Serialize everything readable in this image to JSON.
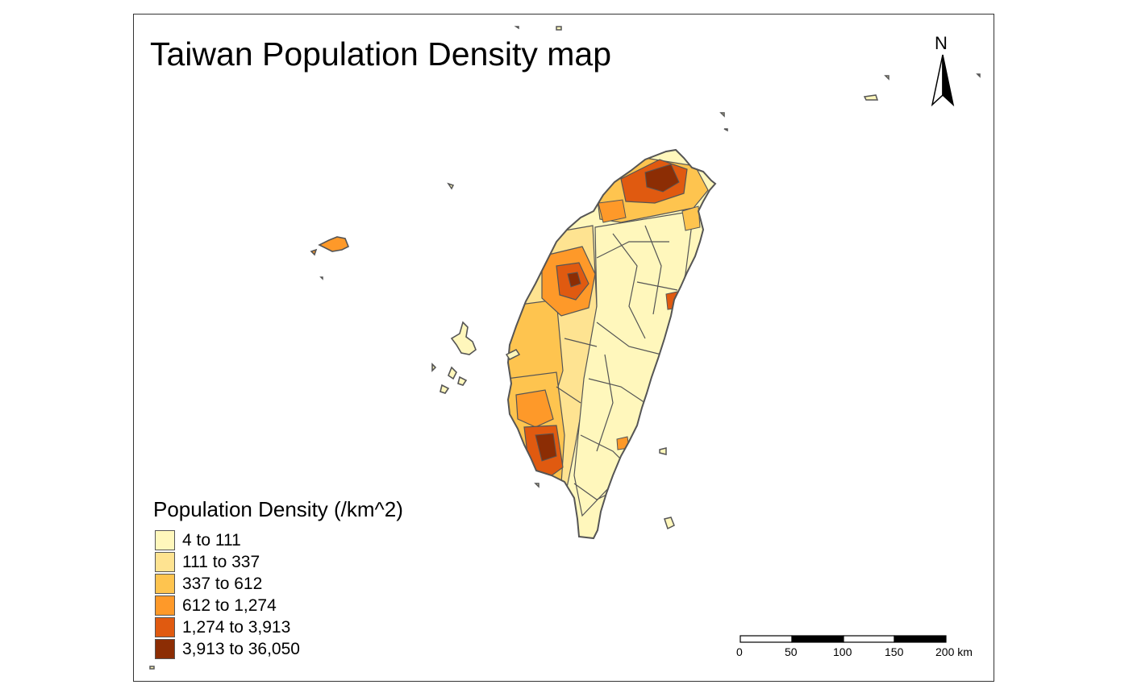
{
  "title": "Taiwan Population Density map",
  "legend": {
    "title": "Population Density (/km^2)",
    "items": [
      {
        "label": "4 to 111",
        "color": "#fff7bc"
      },
      {
        "label": "111 to 337",
        "color": "#fee391"
      },
      {
        "label": "337 to 612",
        "color": "#fec44f"
      },
      {
        "label": "612 to 1,274",
        "color": "#fe9929"
      },
      {
        "label": "1,274 to 3,913",
        "color": "#e05a10"
      },
      {
        "label": "3,913 to 36,050",
        "color": "#8c2d04"
      }
    ]
  },
  "scale_bar": {
    "labels": [
      "0",
      "50",
      "100",
      "150",
      "200 km"
    ]
  },
  "north_arrow": {
    "label": "N",
    "icon": "north-arrow-icon"
  },
  "colors": {
    "border": "#555555",
    "frame": "#333333"
  }
}
